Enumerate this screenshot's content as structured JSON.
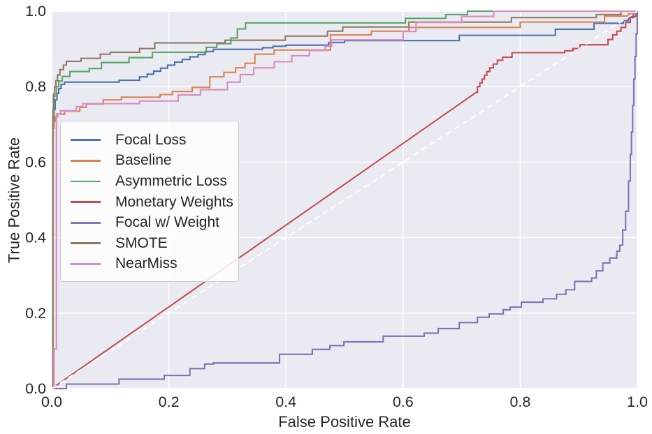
{
  "figure": {
    "background": "#ffffff",
    "axes_background": "#eaeaf2",
    "grid_color": "#ffffff",
    "text_color": "#262626"
  },
  "axes": {
    "x": {
      "label": "False Positive Rate",
      "tick_values": [
        0,
        0.2,
        0.4,
        0.6,
        0.8,
        1.0
      ],
      "tick_labels": [
        "0.0",
        "0.2",
        "0.4",
        "0.6",
        "0.8",
        "1.0"
      ]
    },
    "y": {
      "label": "True Positive Rate",
      "tick_values": [
        0,
        0.2,
        0.4,
        0.6,
        0.8,
        1.0
      ],
      "tick_labels": [
        "0.0",
        "0.2",
        "0.4",
        "0.6",
        "0.8",
        "1.0"
      ]
    }
  },
  "chart_data": {
    "type": "line",
    "subtype": "roc-curves",
    "title": "",
    "xlabel": "False Positive Rate",
    "ylabel": "True Positive Rate",
    "xlim": [
      0,
      1
    ],
    "ylim": [
      0,
      1
    ],
    "grid": true,
    "legend_position": "upper-left",
    "reference_line": {
      "name": "chance-diagonal",
      "color": "#ffffff",
      "dashed": true,
      "points": [
        [
          0,
          0
        ],
        [
          1,
          1
        ]
      ]
    },
    "series": [
      {
        "name": "Focal Loss",
        "color": "#4c72b0",
        "interp": "steps",
        "points": [
          [
            0,
            0
          ],
          [
            0.002,
            0.7
          ],
          [
            0.004,
            0.74
          ],
          [
            0.006,
            0.765
          ],
          [
            0.009,
            0.782
          ],
          [
            0.012,
            0.795
          ],
          [
            0.016,
            0.806
          ],
          [
            0.022,
            0.812
          ],
          [
            0.115,
            0.817
          ],
          [
            0.15,
            0.826
          ],
          [
            0.163,
            0.833
          ],
          [
            0.174,
            0.841
          ],
          [
            0.186,
            0.849
          ],
          [
            0.198,
            0.857
          ],
          [
            0.21,
            0.865
          ],
          [
            0.223,
            0.872
          ],
          [
            0.236,
            0.879
          ],
          [
            0.25,
            0.885
          ],
          [
            0.262,
            0.893
          ],
          [
            0.276,
            0.899
          ],
          [
            0.36,
            0.903
          ],
          [
            0.378,
            0.907
          ],
          [
            0.4,
            0.91
          ],
          [
            0.473,
            0.917
          ],
          [
            0.5,
            0.922
          ],
          [
            0.696,
            0.936
          ],
          [
            0.86,
            0.952
          ],
          [
            0.926,
            0.968
          ],
          [
            0.976,
            0.975
          ],
          [
            0.985,
            0.983
          ],
          [
            0.993,
            0.991
          ],
          [
            1,
            1
          ]
        ]
      },
      {
        "name": "Baseline",
        "color": "#dd8452",
        "interp": "steps",
        "points": [
          [
            0,
            0
          ],
          [
            0.002,
            0.69
          ],
          [
            0.004,
            0.708
          ],
          [
            0.006,
            0.72
          ],
          [
            0.01,
            0.727
          ],
          [
            0.022,
            0.735
          ],
          [
            0.048,
            0.745
          ],
          [
            0.059,
            0.754
          ],
          [
            0.088,
            0.765
          ],
          [
            0.119,
            0.772
          ],
          [
            0.185,
            0.779
          ],
          [
            0.206,
            0.787
          ],
          [
            0.24,
            0.798
          ],
          [
            0.27,
            0.826
          ],
          [
            0.294,
            0.838
          ],
          [
            0.314,
            0.85
          ],
          [
            0.33,
            0.862
          ],
          [
            0.347,
            0.886
          ],
          [
            0.38,
            0.897
          ],
          [
            0.476,
            0.937
          ],
          [
            0.546,
            0.947
          ],
          [
            0.61,
            0.957
          ],
          [
            0.8,
            0.971
          ],
          [
            0.944,
            0.987
          ],
          [
            0.985,
            0.993
          ],
          [
            1,
            1
          ]
        ]
      },
      {
        "name": "Asymmetric Loss",
        "color": "#55a868",
        "interp": "steps",
        "points": [
          [
            0,
            0
          ],
          [
            0.002,
            0.72
          ],
          [
            0.004,
            0.775
          ],
          [
            0.008,
            0.8
          ],
          [
            0.012,
            0.815
          ],
          [
            0.018,
            0.827
          ],
          [
            0.031,
            0.84
          ],
          [
            0.064,
            0.848
          ],
          [
            0.085,
            0.864
          ],
          [
            0.132,
            0.877
          ],
          [
            0.172,
            0.891
          ],
          [
            0.264,
            0.904
          ],
          [
            0.282,
            0.914
          ],
          [
            0.306,
            0.929
          ],
          [
            0.317,
            0.953
          ],
          [
            0.331,
            0.969
          ],
          [
            0.604,
            0.981
          ],
          [
            0.673,
            0.991
          ],
          [
            0.71,
            1.0
          ],
          [
            1,
            1
          ]
        ]
      },
      {
        "name": "Monetary Weights",
        "color": "#c44e52",
        "interp": "linear",
        "points": [
          [
            0,
            0
          ],
          [
            0.725,
            0.785
          ],
          [
            0.727,
            0.785
          ],
          [
            0.727,
            0.8
          ],
          [
            0.731,
            0.8
          ],
          [
            0.731,
            0.81
          ],
          [
            0.735,
            0.81
          ],
          [
            0.735,
            0.82
          ],
          [
            0.739,
            0.82
          ],
          [
            0.739,
            0.83
          ],
          [
            0.743,
            0.83
          ],
          [
            0.743,
            0.84
          ],
          [
            0.748,
            0.84
          ],
          [
            0.748,
            0.85
          ],
          [
            0.754,
            0.85
          ],
          [
            0.754,
            0.86
          ],
          [
            0.761,
            0.86
          ],
          [
            0.761,
            0.87
          ],
          [
            0.77,
            0.87
          ],
          [
            0.77,
            0.878
          ],
          [
            0.786,
            0.878
          ],
          [
            0.786,
            0.89
          ],
          [
            0.876,
            0.89
          ],
          [
            0.876,
            0.895
          ],
          [
            0.89,
            0.895
          ],
          [
            0.89,
            0.901
          ],
          [
            0.902,
            0.901
          ],
          [
            0.902,
            0.911
          ],
          [
            0.95,
            0.911
          ],
          [
            0.95,
            0.925
          ],
          [
            0.958,
            0.925
          ],
          [
            0.958,
            0.937
          ],
          [
            0.965,
            0.937
          ],
          [
            0.965,
            0.947
          ],
          [
            0.972,
            0.947
          ],
          [
            0.972,
            0.957
          ],
          [
            0.98,
            0.957
          ],
          [
            0.98,
            0.97
          ],
          [
            0.988,
            0.97
          ],
          [
            0.988,
            0.985
          ],
          [
            0.997,
            0.985
          ],
          [
            1,
            1
          ]
        ]
      },
      {
        "name": "Focal w/ Weight",
        "color": "#8172b3",
        "interp": "steps",
        "points": [
          [
            0,
            0
          ],
          [
            0.025,
            0.012
          ],
          [
            0.115,
            0.025
          ],
          [
            0.192,
            0.035
          ],
          [
            0.236,
            0.053
          ],
          [
            0.261,
            0.065
          ],
          [
            0.276,
            0.068
          ],
          [
            0.389,
            0.091
          ],
          [
            0.445,
            0.104
          ],
          [
            0.475,
            0.114
          ],
          [
            0.499,
            0.124
          ],
          [
            0.566,
            0.139
          ],
          [
            0.636,
            0.147
          ],
          [
            0.66,
            0.159
          ],
          [
            0.696,
            0.175
          ],
          [
            0.727,
            0.189
          ],
          [
            0.747,
            0.198
          ],
          [
            0.771,
            0.209
          ],
          [
            0.783,
            0.216
          ],
          [
            0.802,
            0.229
          ],
          [
            0.839,
            0.238
          ],
          [
            0.862,
            0.25
          ],
          [
            0.878,
            0.262
          ],
          [
            0.893,
            0.284
          ],
          [
            0.922,
            0.293
          ],
          [
            0.93,
            0.312
          ],
          [
            0.941,
            0.333
          ],
          [
            0.953,
            0.346
          ],
          [
            0.965,
            0.364
          ],
          [
            0.97,
            0.38
          ],
          [
            0.975,
            0.42
          ],
          [
            0.98,
            0.47
          ],
          [
            0.985,
            0.55
          ],
          [
            0.988,
            0.62
          ],
          [
            0.99,
            0.68
          ],
          [
            0.992,
            0.75
          ],
          [
            0.994,
            0.82
          ],
          [
            0.996,
            0.88
          ],
          [
            0.998,
            0.94
          ],
          [
            1,
            1
          ]
        ]
      },
      {
        "name": "SMOTE",
        "color": "#937860",
        "interp": "steps",
        "points": [
          [
            0,
            0
          ],
          [
            0.002,
            0.74
          ],
          [
            0.003,
            0.78
          ],
          [
            0.005,
            0.8
          ],
          [
            0.007,
            0.816
          ],
          [
            0.01,
            0.831
          ],
          [
            0.014,
            0.845
          ],
          [
            0.02,
            0.857
          ],
          [
            0.025,
            0.867
          ],
          [
            0.05,
            0.875
          ],
          [
            0.083,
            0.886
          ],
          [
            0.1,
            0.891
          ],
          [
            0.15,
            0.901
          ],
          [
            0.176,
            0.916
          ],
          [
            0.296,
            0.923
          ],
          [
            0.399,
            0.934
          ],
          [
            0.471,
            0.947
          ],
          [
            0.497,
            0.958
          ],
          [
            0.61,
            0.971
          ],
          [
            0.785,
            0.983
          ],
          [
            0.93,
            0.991
          ],
          [
            0.972,
            1.0
          ],
          [
            1,
            1
          ]
        ]
      },
      {
        "name": "NearMiss",
        "color": "#da8bc3",
        "interp": "steps",
        "points": [
          [
            0,
            0
          ],
          [
            0.004,
            0.105
          ],
          [
            0.008,
            0.728
          ],
          [
            0.015,
            0.736
          ],
          [
            0.042,
            0.747
          ],
          [
            0.053,
            0.755
          ],
          [
            0.15,
            0.762
          ],
          [
            0.216,
            0.778
          ],
          [
            0.254,
            0.792
          ],
          [
            0.3,
            0.812
          ],
          [
            0.322,
            0.832
          ],
          [
            0.345,
            0.85
          ],
          [
            0.38,
            0.866
          ],
          [
            0.41,
            0.882
          ],
          [
            0.44,
            0.896
          ],
          [
            0.467,
            0.907
          ],
          [
            0.478,
            0.924
          ],
          [
            0.6,
            0.946
          ],
          [
            0.622,
            0.97
          ],
          [
            0.7,
            0.986
          ],
          [
            0.755,
            1.0
          ],
          [
            1,
            1
          ]
        ]
      }
    ]
  }
}
